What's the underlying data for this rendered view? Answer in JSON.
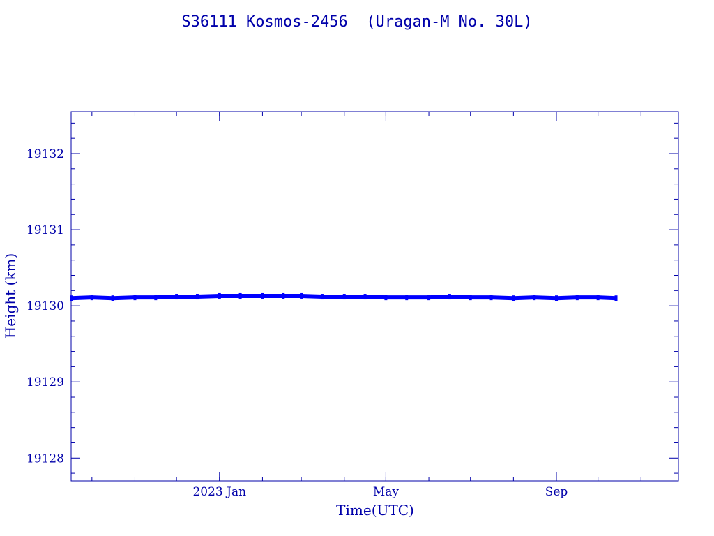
{
  "chart_data": {
    "type": "line",
    "title": "S36111 Kosmos-2456  (Uragan-M No. 30L)",
    "xlabel": "Time(UTC)",
    "ylabel": "Height (km)",
    "ylim": [
      19127.7,
      19132.55
    ],
    "xlim": [
      "2022-09-16",
      "2023-11-28"
    ],
    "x_tick_labels": [
      {
        "date": "2023-01-01",
        "label": "2023 Jan"
      },
      {
        "date": "2023-05-01",
        "label": "May"
      },
      {
        "date": "2023-09-01",
        "label": "Sep"
      }
    ],
    "y_tick_labels": [
      "19128",
      "19129",
      "19130",
      "19131",
      "19132"
    ],
    "series": [
      {
        "color": "#0000ff",
        "x": [
          "2022-09-16",
          "2022-10-01",
          "2022-10-16",
          "2022-11-01",
          "2022-11-16",
          "2022-12-01",
          "2022-12-16",
          "2023-01-01",
          "2023-01-16",
          "2023-02-01",
          "2023-02-16",
          "2023-03-01",
          "2023-03-16",
          "2023-04-01",
          "2023-04-16",
          "2023-05-01",
          "2023-05-16",
          "2023-06-01",
          "2023-06-16",
          "2023-07-01",
          "2023-07-16",
          "2023-08-01",
          "2023-08-16",
          "2023-09-01",
          "2023-09-16",
          "2023-10-01",
          "2023-10-14"
        ],
        "y": [
          19130.1,
          19130.11,
          19130.1,
          19130.11,
          19130.11,
          19130.12,
          19130.12,
          19130.13,
          19130.13,
          19130.13,
          19130.13,
          19130.13,
          19130.12,
          19130.12,
          19130.12,
          19130.11,
          19130.11,
          19130.11,
          19130.12,
          19130.11,
          19130.11,
          19130.1,
          19130.11,
          19130.1,
          19130.11,
          19130.11,
          19130.1
        ]
      }
    ]
  }
}
